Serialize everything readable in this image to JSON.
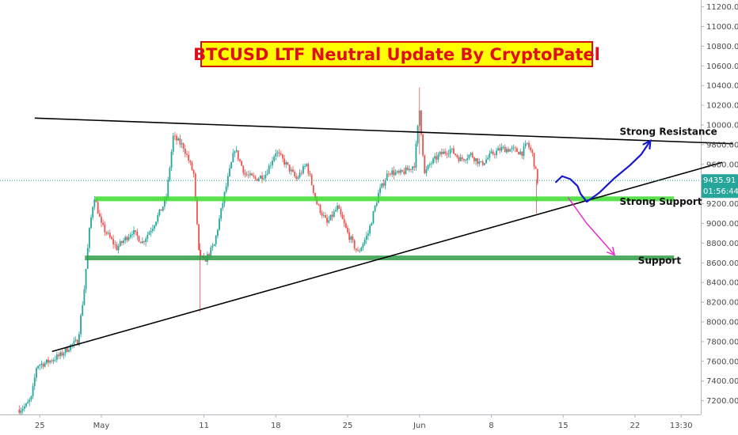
{
  "chart_data": {
    "type": "candlestick",
    "title": "BTCUSD LTF Neutral Update By CryptoPatel",
    "instrument": "BTCUSD",
    "y_axis": {
      "position": "right",
      "ticks": [
        "11200.00",
        "11000.00",
        "10800.00",
        "10600.00",
        "10400.00",
        "10200.00",
        "10000.00",
        "9800.00",
        "9600.00",
        "9400.00",
        "9200.00",
        "9000.00",
        "8800.00",
        "8600.00",
        "8400.00",
        "8200.00",
        "8000.00",
        "7800.00",
        "7600.00",
        "7400.00",
        "7200.00"
      ],
      "range": [
        7050,
        11290
      ]
    },
    "x_axis": {
      "ticks": [
        "25",
        "May",
        "11",
        "18",
        "25",
        "Jun",
        "8",
        "15",
        "22",
        "13:30"
      ],
      "range_days": [
        -7,
        43.5
      ],
      "tick_days": [
        -5,
        1,
        11,
        18,
        25,
        32,
        39,
        46,
        53,
        57.5
      ]
    },
    "last_price": {
      "value": 9435.91,
      "label": "9435.91",
      "countdown": "01:56:44"
    },
    "levels": [
      {
        "name": "Strong Support",
        "price": 9250,
        "color": "#3ddc2f"
      },
      {
        "name": "Support",
        "price": 8650,
        "color": "#2e9e45"
      }
    ],
    "trendlines": [
      {
        "name": "Strong Resistance",
        "from": [
          -5.5,
          10070
        ],
        "to": [
          62.5,
          9810
        ],
        "color": "#000000"
      },
      {
        "name": "ascending support",
        "from": [
          -3.8,
          7700
        ],
        "to": [
          61.5,
          9620
        ],
        "color": "#000000"
      }
    ],
    "scenarios": [
      {
        "name": "bullish",
        "color": "#1818d0",
        "points": [
          [
            45.3,
            9420
          ],
          [
            45.9,
            9480
          ],
          [
            46.7,
            9450
          ],
          [
            47.4,
            9380
          ],
          [
            47.7,
            9300
          ],
          [
            48.3,
            9220
          ],
          [
            49.5,
            9310
          ],
          [
            51.0,
            9460
          ],
          [
            52.5,
            9590
          ],
          [
            53.6,
            9700
          ],
          [
            54.5,
            9840
          ]
        ]
      },
      {
        "name": "bearish",
        "color": "#ee22cc",
        "points": [
          [
            46.5,
            9260
          ],
          [
            48.3,
            9000
          ],
          [
            50.0,
            8800
          ],
          [
            51.0,
            8680
          ]
        ]
      }
    ],
    "annotations": [
      {
        "text": "Strong Resistance",
        "day": 51.5,
        "price": 9900
      },
      {
        "text": "Strong Support",
        "day": 51.5,
        "price": 9190
      },
      {
        "text": "Support",
        "day": 53.3,
        "price": 8590
      }
    ],
    "candle_interval_hours": 4,
    "close_anchors": [
      [
        -7.0,
        7110
      ],
      [
        -6.3,
        7150
      ],
      [
        -5.8,
        7230
      ],
      [
        -5.3,
        7560
      ],
      [
        -4.5,
        7580
      ],
      [
        -3.0,
        7660
      ],
      [
        -2.0,
        7760
      ],
      [
        -1.3,
        7800
      ],
      [
        -0.7,
        8300
      ],
      [
        -0.2,
        8900
      ],
      [
        0.3,
        9290
      ],
      [
        1.0,
        8980
      ],
      [
        2.5,
        8750
      ],
      [
        4.0,
        8920
      ],
      [
        5.0,
        8810
      ],
      [
        6.0,
        8970
      ],
      [
        7.3,
        9240
      ],
      [
        8.0,
        9880
      ],
      [
        9.0,
        9780
      ],
      [
        10.0,
        9500
      ],
      [
        10.5,
        8700
      ],
      [
        11.0,
        8610
      ],
      [
        12.0,
        8780
      ],
      [
        13.0,
        9300
      ],
      [
        14.0,
        9760
      ],
      [
        15.0,
        9500
      ],
      [
        16.0,
        9450
      ],
      [
        17.0,
        9500
      ],
      [
        18.0,
        9730
      ],
      [
        19.0,
        9600
      ],
      [
        20.0,
        9450
      ],
      [
        21.0,
        9600
      ],
      [
        22.0,
        9200
      ],
      [
        23.0,
        9000
      ],
      [
        24.0,
        9160
      ],
      [
        25.0,
        8900
      ],
      [
        26.0,
        8700
      ],
      [
        27.0,
        8900
      ],
      [
        28.0,
        9300
      ],
      [
        29.0,
        9530
      ],
      [
        30.0,
        9500
      ],
      [
        31.0,
        9550
      ],
      [
        31.5,
        9600
      ],
      [
        32.0,
        10150
      ],
      [
        32.5,
        9500
      ],
      [
        33.0,
        9600
      ],
      [
        34.0,
        9700
      ],
      [
        35.0,
        9750
      ],
      [
        36.0,
        9650
      ],
      [
        37.0,
        9700
      ],
      [
        38.0,
        9600
      ],
      [
        39.0,
        9700
      ],
      [
        40.0,
        9760
      ],
      [
        41.0,
        9750
      ],
      [
        42.0,
        9720
      ],
      [
        42.5,
        9810
      ],
      [
        43.0,
        9700
      ],
      [
        43.5,
        9430
      ]
    ],
    "colors": {
      "up": "#26a69a",
      "down": "#ef5350",
      "price_line": "#26a69a"
    }
  }
}
